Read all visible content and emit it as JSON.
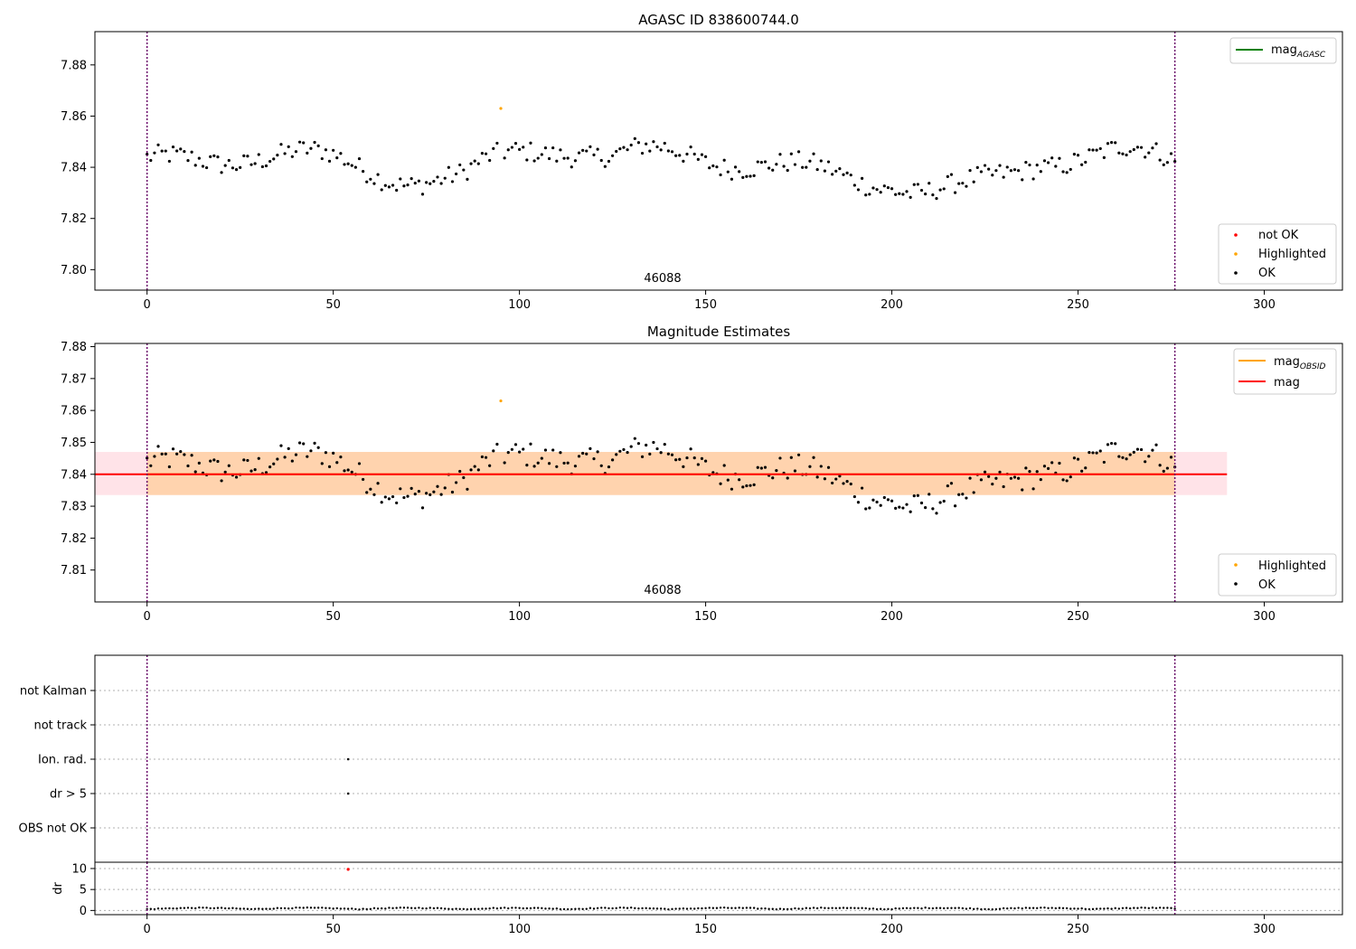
{
  "chart_data": [
    {
      "type": "scatter",
      "title": "AGASC ID 838600744.0",
      "annotation": "46088",
      "xlim": [
        -14,
        321
      ],
      "ylim": [
        7.792,
        7.893
      ],
      "xticks": [
        0,
        50,
        100,
        150,
        200,
        250,
        300
      ],
      "yticks": [
        7.8,
        7.82,
        7.84,
        7.86,
        7.88
      ],
      "vlines": [
        0,
        276
      ],
      "legend_lines": [
        {
          "name": "mag",
          "sub": "AGASC",
          "color": "#008000"
        }
      ],
      "legend_points": [
        {
          "name": "not OK",
          "color": "#ff0000"
        },
        {
          "name": "Highlighted",
          "color": "#ffa500"
        },
        {
          "name": "OK",
          "color": "#000000"
        }
      ],
      "highlight": {
        "x": 95,
        "y": 7.863
      }
    },
    {
      "type": "scatter",
      "title": "Magnitude Estimates",
      "annotation": "46088",
      "xlim": [
        -14,
        321
      ],
      "ylim": [
        7.8,
        7.881
      ],
      "xticks": [
        0,
        50,
        100,
        150,
        200,
        250,
        300
      ],
      "yticks": [
        7.81,
        7.82,
        7.83,
        7.84,
        7.85,
        7.86,
        7.87,
        7.88
      ],
      "vlines": [
        0,
        276
      ],
      "mag_line": 7.84,
      "band_outer": {
        "x": [
          -14,
          290
        ],
        "y": [
          7.8335,
          7.847
        ]
      },
      "band_inner": {
        "x": [
          0,
          276
        ],
        "y": [
          7.8335,
          7.847
        ]
      },
      "legend_lines": [
        {
          "name": "mag",
          "sub": "OBSID",
          "color": "#ffa500"
        },
        {
          "name": "mag",
          "sub": "",
          "color": "#ff0000"
        }
      ],
      "legend_points": [
        {
          "name": "Highlighted",
          "color": "#ffa500"
        },
        {
          "name": "OK",
          "color": "#000000"
        }
      ],
      "highlight": {
        "x": 95,
        "y": 7.863
      }
    },
    {
      "type": "scatter",
      "title": "",
      "xlim": [
        -14,
        321
      ],
      "xticks": [
        0,
        50,
        100,
        150,
        200,
        250,
        300
      ],
      "vlines": [
        0,
        276
      ],
      "flags": [
        "not Kalman",
        "not track",
        "Ion. rad.",
        "dr > 5",
        "OBS not OK"
      ],
      "flag_points": [
        {
          "flag": "Ion. rad.",
          "x": 54
        },
        {
          "flag": "dr > 5",
          "x": 54
        }
      ],
      "dr": {
        "ylabel": "dr",
        "yticks": [
          0,
          5,
          10
        ],
        "ylim": [
          -1,
          11.5
        ],
        "outlier": {
          "x": 54,
          "y": 9.8
        }
      }
    }
  ]
}
